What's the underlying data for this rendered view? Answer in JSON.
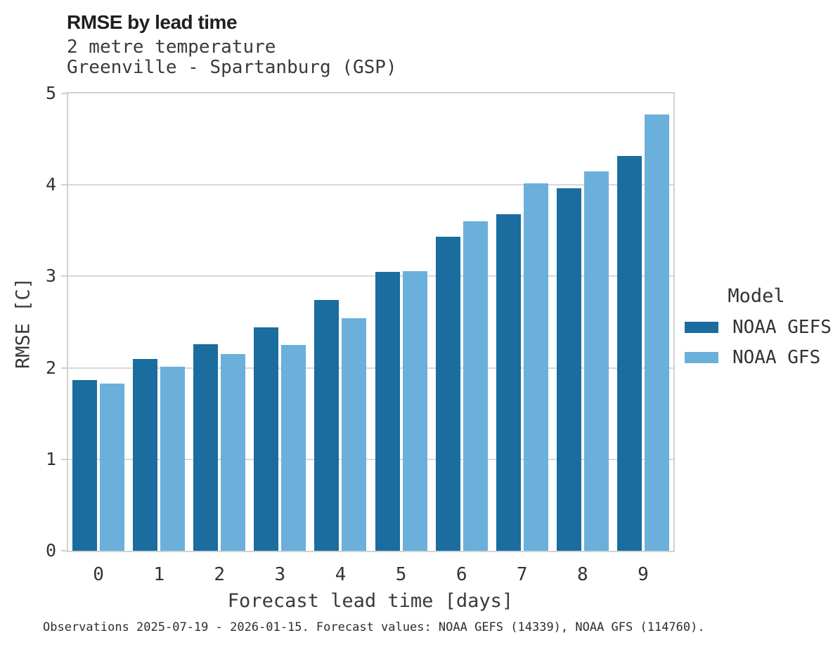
{
  "header": {
    "title": "RMSE by lead time",
    "subtitle_line1": "2 metre temperature",
    "subtitle_line2": "Greenville - Spartanburg (GSP)"
  },
  "footer": {
    "caption": "Observations 2025-07-19 - 2026-01-15. Forecast values: NOAA GEFS (14339), NOAA GFS (114760)."
  },
  "legend": {
    "title": "Model",
    "items": [
      {
        "label": "NOAA GEFS",
        "color": "#1a6d9e"
      },
      {
        "label": "NOAA GFS",
        "color": "#6ab0db"
      }
    ]
  },
  "axes": {
    "xlabel": "Forecast lead time [days]",
    "ylabel": "RMSE [C]"
  },
  "chart_data": {
    "type": "bar",
    "title": "RMSE by lead time",
    "subtitle": [
      "2 metre temperature",
      "Greenville - Spartanburg (GSP)"
    ],
    "categories": [
      "0",
      "1",
      "2",
      "3",
      "4",
      "5",
      "6",
      "7",
      "8",
      "9"
    ],
    "series": [
      {
        "name": "NOAA GEFS",
        "color": "#1a6d9e",
        "values": [
          1.87,
          2.1,
          2.26,
          2.44,
          2.74,
          3.05,
          3.43,
          3.68,
          3.96,
          4.32
        ]
      },
      {
        "name": "NOAA GFS",
        "color": "#6ab0db",
        "values": [
          1.83,
          2.01,
          2.15,
          2.25,
          2.54,
          3.06,
          3.6,
          4.02,
          4.15,
          4.77
        ]
      }
    ],
    "xlabel": "Forecast lead time [days]",
    "ylabel": "RMSE [C]",
    "ylim": [
      0,
      5
    ],
    "yticks": [
      0,
      1,
      2,
      3,
      4,
      5
    ],
    "grid": true,
    "grid_axis": "y",
    "legend_title": "Model",
    "legend_position": "right",
    "bar_grouping": "grouped"
  }
}
